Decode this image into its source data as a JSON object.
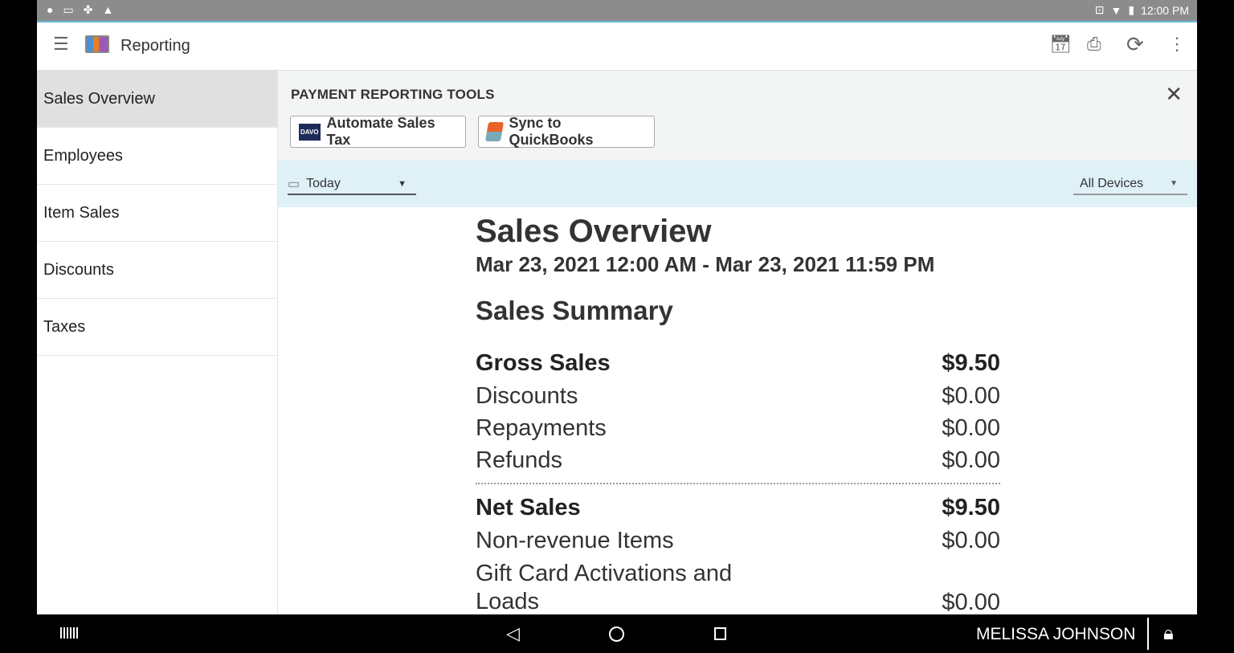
{
  "status_bar": {
    "time": "12:00 PM"
  },
  "app_bar": {
    "title": "Reporting",
    "icons": [
      "menu-icon",
      "reporting-logo",
      "calendar-icon",
      "print-icon",
      "sync-icon",
      "more-vert-icon"
    ]
  },
  "sidebar": {
    "items": [
      {
        "label": "Sales Overview",
        "selected": true
      },
      {
        "label": "Employees"
      },
      {
        "label": "Item Sales"
      },
      {
        "label": "Discounts"
      },
      {
        "label": "Taxes"
      }
    ]
  },
  "tools": {
    "heading": "PAYMENT REPORTING TOOLS",
    "automate_label": "Automate Sales Tax",
    "davo_logo": "DAVO",
    "sync_label": "Sync to QuickBooks"
  },
  "filter": {
    "date": "Today",
    "devices": "All Devices"
  },
  "report": {
    "title": "Sales Overview",
    "range": "Mar 23, 2021 12:00 AM - Mar 23, 2021 11:59 PM",
    "section": "Sales Summary",
    "rows": [
      {
        "label": "Gross Sales",
        "value": "$9.50"
      },
      {
        "label": "Discounts",
        "value": "$0.00"
      },
      {
        "label": "Repayments",
        "value": "$0.00"
      },
      {
        "label": "Refunds",
        "value": "$0.00"
      },
      {
        "label": "Net Sales",
        "value": "$9.50"
      },
      {
        "label": "Non-revenue Items",
        "value": "$0.00"
      },
      {
        "label": "Gift Card Activations and Loads",
        "value": "$0.00"
      }
    ]
  },
  "nav_bar": {
    "user": "MELISSA JOHNSON"
  }
}
